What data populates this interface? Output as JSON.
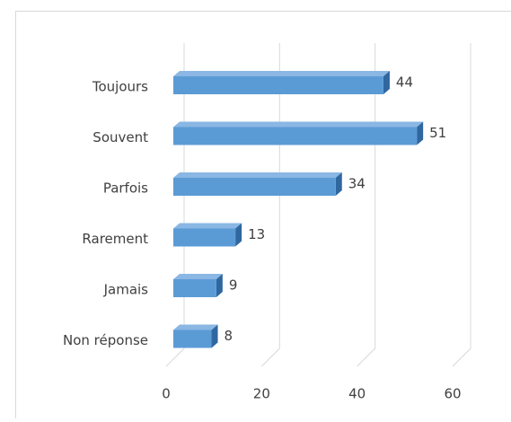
{
  "chart_data": {
    "type": "bar",
    "orientation": "horizontal",
    "categories": [
      "Toujours",
      "Souvent",
      "Parfois",
      "Rarement",
      "Jamais",
      "Non réponse"
    ],
    "values": [
      44,
      51,
      34,
      13,
      9,
      8
    ],
    "color": "#5b9bd5",
    "xlim": [
      0,
      60
    ],
    "xticks": [
      0,
      20,
      40,
      60
    ],
    "grid": true
  }
}
